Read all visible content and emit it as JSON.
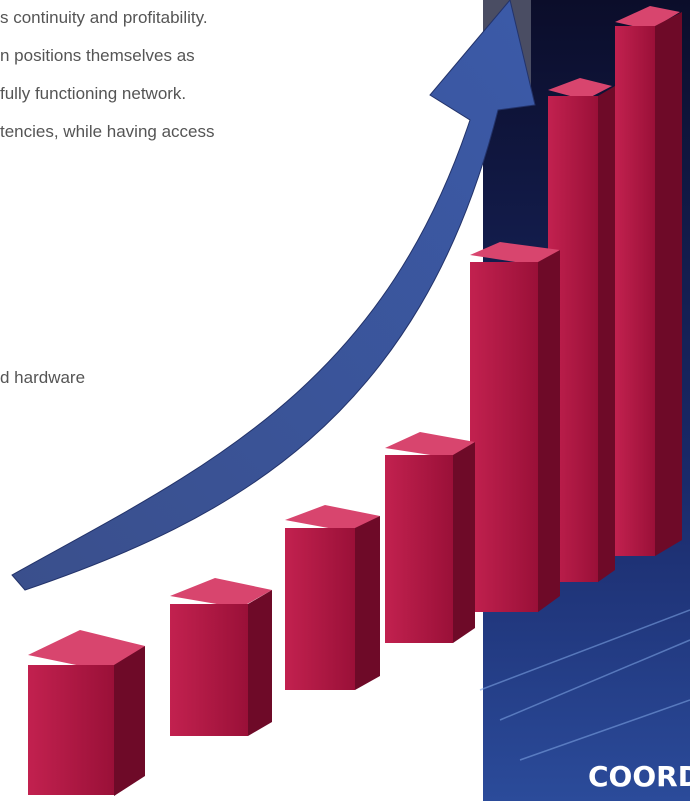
{
  "body_text": [
    "s continuity and profitability.",
    "n positions themselves as",
    "fully functioning network.",
    "tencies, while having access",
    "d hardware"
  ],
  "banner": {
    "label": "COORDI"
  }
}
